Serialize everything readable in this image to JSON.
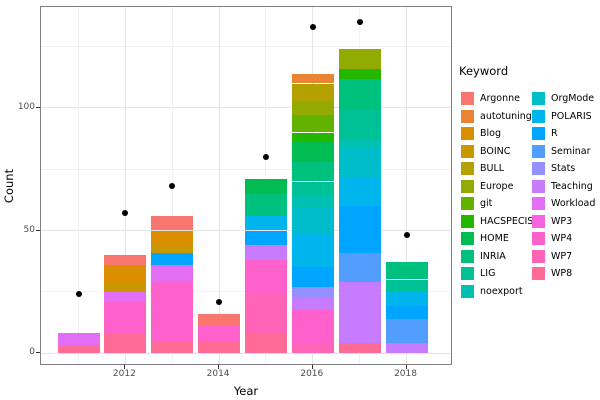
{
  "figure": {
    "x_axis_title": "Year",
    "y_axis_title": "Count",
    "legend_title": "Keyword"
  },
  "chart_data": {
    "type": "bar",
    "stacked": true,
    "xlabel": "Year",
    "ylabel": "Count",
    "ylim": [
      -5,
      141
    ],
    "grid": true,
    "legend_position": "right",
    "y_major_ticks": [
      0,
      50,
      100
    ],
    "y_minor_gridlines": [
      25,
      75,
      125
    ],
    "x_labeled_ticks": [
      2012,
      2014,
      2016,
      2018
    ],
    "years": [
      2011,
      2012,
      2013,
      2014,
      2015,
      2016,
      2017,
      2018
    ],
    "keywords": [
      {
        "name": "Argonne",
        "color": "#F8766D"
      },
      {
        "name": "autotuning",
        "color": "#EB8335"
      },
      {
        "name": "Blog",
        "color": "#DB8E00"
      },
      {
        "name": "BOINC",
        "color": "#C99800"
      },
      {
        "name": "BULL",
        "color": "#B2A100"
      },
      {
        "name": "Europe",
        "color": "#93AA00"
      },
      {
        "name": "git",
        "color": "#64B200"
      },
      {
        "name": "HACSPECIS",
        "color": "#24B700"
      },
      {
        "name": "HOME",
        "color": "#00BC51"
      },
      {
        "name": "INRIA",
        "color": "#00C07D"
      },
      {
        "name": "LIG",
        "color": "#00C096"
      },
      {
        "name": "noexport",
        "color": "#00C0B2"
      },
      {
        "name": "OrgMode",
        "color": "#00BDCC"
      },
      {
        "name": "POLARIS",
        "color": "#00B5EC"
      },
      {
        "name": "R",
        "color": "#00A5FF"
      },
      {
        "name": "Seminar",
        "color": "#529EFF"
      },
      {
        "name": "Stats",
        "color": "#9590FF"
      },
      {
        "name": "Teaching",
        "color": "#C77CFF"
      },
      {
        "name": "Workload",
        "color": "#E36EF6"
      },
      {
        "name": "WP3",
        "color": "#F564E3"
      },
      {
        "name": "WP4",
        "color": "#FF61CC"
      },
      {
        "name": "WP7",
        "color": "#FF63B6"
      },
      {
        "name": "WP8",
        "color": "#FF6B95"
      }
    ],
    "bars_bottom_to_top": {
      "2011": [
        [
          "WP8",
          3
        ],
        [
          "Workload",
          5
        ]
      ],
      "2012": [
        [
          "WP8",
          8
        ],
        [
          "WP4",
          13
        ],
        [
          "Workload",
          4
        ],
        [
          "BOINC",
          3
        ],
        [
          "Blog",
          8
        ],
        [
          "Argonne",
          4
        ]
      ],
      "2013": [
        [
          "WP8",
          5
        ],
        [
          "WP4",
          24
        ],
        [
          "Workload",
          7
        ],
        [
          "R",
          5
        ],
        [
          "BOINC",
          3
        ],
        [
          "Blog",
          6
        ],
        [
          "Argonne",
          6
        ]
      ],
      "2014": [
        [
          "WP8",
          5
        ],
        [
          "WP4",
          6
        ],
        [
          "Argonne",
          5
        ]
      ],
      "2015": [
        [
          "WP8",
          8
        ],
        [
          "WP7",
          16
        ],
        [
          "WP4",
          14
        ],
        [
          "Teaching",
          6
        ],
        [
          "R",
          6
        ],
        [
          "POLARIS",
          6
        ],
        [
          "INRIA",
          9
        ],
        [
          "HOME",
          6
        ]
      ],
      "2016": [
        [
          "WP7",
          4
        ],
        [
          "WP4",
          14
        ],
        [
          "Teaching",
          5
        ],
        [
          "Stats",
          4
        ],
        [
          "R",
          8
        ],
        [
          "POLARIS",
          14
        ],
        [
          "OrgMode",
          10
        ],
        [
          "noexport",
          5
        ],
        [
          "LIG",
          6
        ],
        [
          "INRIA",
          8
        ],
        [
          "HOME",
          8
        ],
        [
          "HACSPECIS",
          4
        ],
        [
          "git",
          7
        ],
        [
          "Europe",
          6
        ],
        [
          "BULL",
          7
        ],
        [
          "autotuning",
          4
        ]
      ],
      "2017": [
        [
          "WP8",
          4
        ],
        [
          "Teaching",
          25
        ],
        [
          "Seminar",
          12
        ],
        [
          "R",
          19
        ],
        [
          "POLARIS",
          12
        ],
        [
          "OrgMode",
          12
        ],
        [
          "noexport",
          3
        ],
        [
          "LIG",
          12
        ],
        [
          "INRIA",
          13
        ],
        [
          "HACSPECIS",
          4
        ],
        [
          "Europe",
          8
        ]
      ],
      "2018": [
        [
          "Teaching",
          4
        ],
        [
          "Seminar",
          10
        ],
        [
          "R",
          5
        ],
        [
          "POLARIS",
          6
        ],
        [
          "LIG",
          5
        ],
        [
          "INRIA",
          7
        ]
      ]
    },
    "bar_totals": {
      "2011": 8,
      "2012": 40,
      "2013": 56,
      "2014": 16,
      "2015": 71,
      "2016": 114,
      "2017": 124,
      "2018": 37
    },
    "points": {
      "2011": 24,
      "2012": 57,
      "2013": 68,
      "2014": 21,
      "2015": 80,
      "2016": 133,
      "2017": 135,
      "2018": 48
    }
  },
  "legend": {
    "title": "Keyword",
    "columns": [
      [
        "Argonne",
        "autotuning",
        "Blog",
        "BOINC",
        "BULL",
        "Europe",
        "git",
        "HACSPECIS",
        "HOME",
        "INRIA",
        "LIG",
        "noexport"
      ],
      [
        "OrgMode",
        "POLARIS",
        "R",
        "Seminar",
        "Stats",
        "Teaching",
        "Workload",
        "WP3",
        "WP4",
        "WP7",
        "WP8"
      ]
    ]
  }
}
